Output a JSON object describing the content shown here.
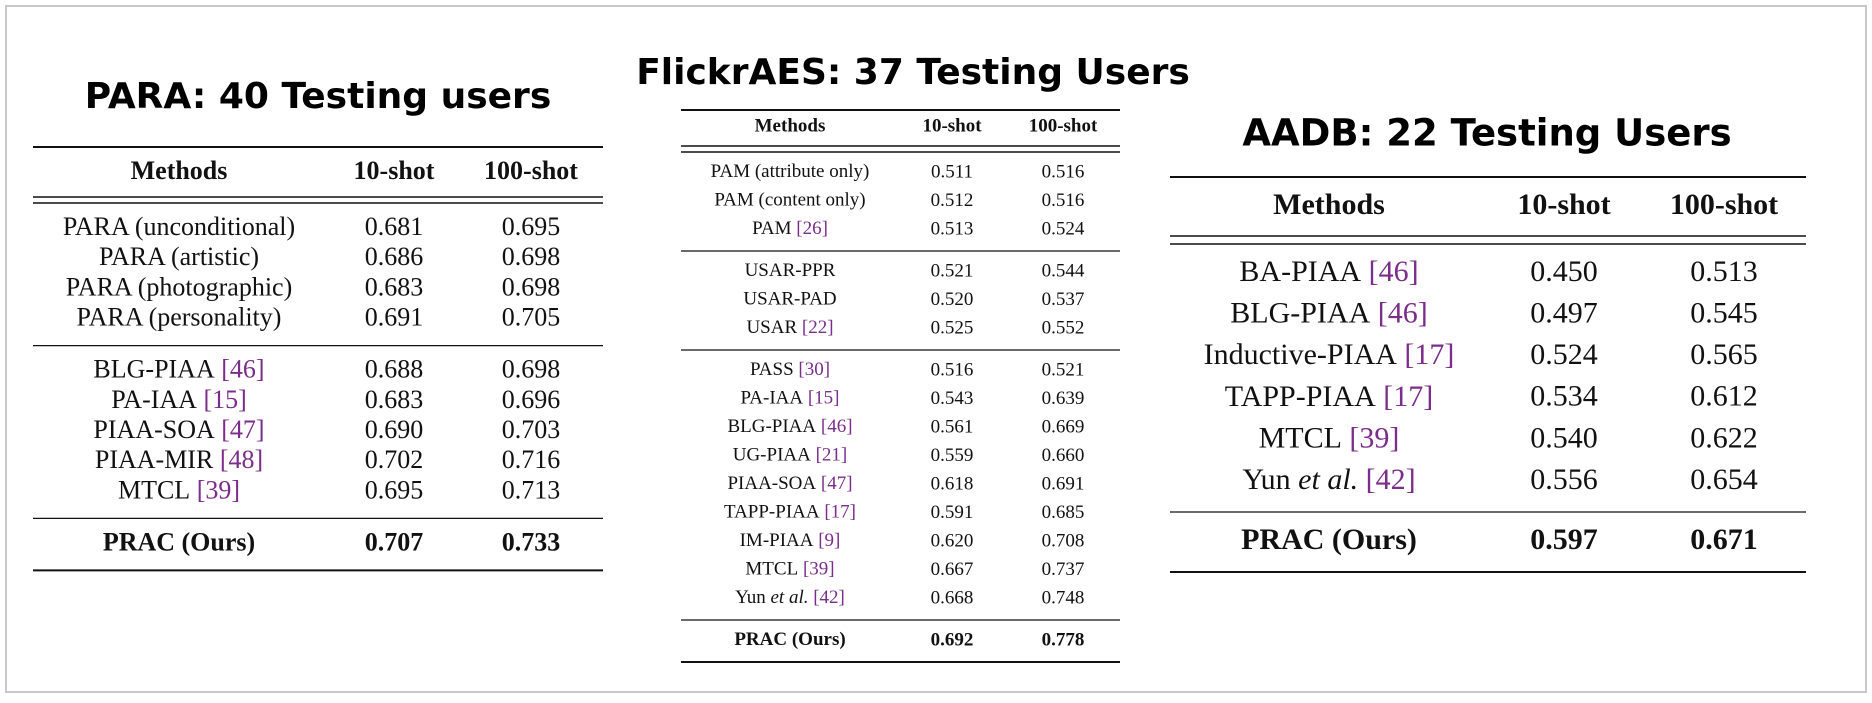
{
  "tables": [
    {
      "title": "PARA: 40 Testing users",
      "header": [
        "Methods",
        "10-shot",
        "100-shot"
      ],
      "groups": [
        {
          "rows": [
            {
              "method": {
                "name": "PARA (unconditional)"
              },
              "values": [
                "0.681",
                "0.695"
              ]
            },
            {
              "method": {
                "name": "PARA (artistic)"
              },
              "values": [
                "0.686",
                "0.698"
              ]
            },
            {
              "method": {
                "name": "PARA (photographic)"
              },
              "values": [
                "0.683",
                "0.698"
              ]
            },
            {
              "method": {
                "name": "PARA (personality)"
              },
              "values": [
                "0.691",
                "0.705"
              ]
            }
          ]
        },
        {
          "rows": [
            {
              "method": {
                "name": "BLG-PIAA",
                "ref": "[46]"
              },
              "values": [
                "0.688",
                "0.698"
              ]
            },
            {
              "method": {
                "name": "PA-IAA",
                "ref": "[15]"
              },
              "values": [
                "0.683",
                "0.696"
              ]
            },
            {
              "method": {
                "name": "PIAA-SOA",
                "ref": "[47]"
              },
              "values": [
                "0.690",
                "0.703"
              ]
            },
            {
              "method": {
                "name": "PIAA-MIR",
                "ref": "[48]"
              },
              "values": [
                "0.702",
                "0.716"
              ]
            },
            {
              "method": {
                "name": "MTCL",
                "ref": "[39]"
              },
              "values": [
                "0.695",
                "0.713"
              ]
            }
          ]
        },
        {
          "bold": true,
          "rows": [
            {
              "method": {
                "name": "PRAC (Ours)"
              },
              "values": [
                "0.707",
                "0.733"
              ]
            }
          ]
        }
      ]
    },
    {
      "title": "FlickrAES: 37 Testing Users",
      "header": [
        "Methods",
        "10-shot",
        "100-shot"
      ],
      "groups": [
        {
          "rows": [
            {
              "method": {
                "name": "PAM (attribute only)"
              },
              "values": [
                "0.511",
                "0.516"
              ]
            },
            {
              "method": {
                "name": "PAM (content only)"
              },
              "values": [
                "0.512",
                "0.516"
              ]
            },
            {
              "method": {
                "name": "PAM",
                "ref": "[26]"
              },
              "values": [
                "0.513",
                "0.524"
              ]
            }
          ]
        },
        {
          "rows": [
            {
              "method": {
                "name": "USAR-PPR"
              },
              "values": [
                "0.521",
                "0.544"
              ]
            },
            {
              "method": {
                "name": "USAR-PAD"
              },
              "values": [
                "0.520",
                "0.537"
              ]
            },
            {
              "method": {
                "name": "USAR",
                "ref": "[22]"
              },
              "values": [
                "0.525",
                "0.552"
              ]
            }
          ]
        },
        {
          "rows": [
            {
              "method": {
                "name": "PASS",
                "ref": "[30]"
              },
              "values": [
                "0.516",
                "0.521"
              ]
            },
            {
              "method": {
                "name": "PA-IAA",
                "ref": "[15]"
              },
              "values": [
                "0.543",
                "0.639"
              ]
            },
            {
              "method": {
                "name": "BLG-PIAA",
                "ref": "[46]"
              },
              "values": [
                "0.561",
                "0.669"
              ]
            },
            {
              "method": {
                "name": "UG-PIAA",
                "ref": "[21]"
              },
              "values": [
                "0.559",
                "0.660"
              ]
            },
            {
              "method": {
                "name": "PIAA-SOA",
                "ref": "[47]"
              },
              "values": [
                "0.618",
                "0.691"
              ]
            },
            {
              "method": {
                "name": "TAPP-PIAA",
                "ref": "[17]"
              },
              "values": [
                "0.591",
                "0.685"
              ]
            },
            {
              "method": {
                "name": "IM-PIAA",
                "ref": "[9]"
              },
              "values": [
                "0.620",
                "0.708"
              ]
            },
            {
              "method": {
                "name": "MTCL",
                "ref": "[39]"
              },
              "values": [
                "0.667",
                "0.737"
              ]
            },
            {
              "method": {
                "name": "Yun",
                "emph": "et al.",
                "ref": "[42]"
              },
              "values": [
                "0.668",
                "0.748"
              ]
            }
          ]
        },
        {
          "bold": true,
          "rows": [
            {
              "method": {
                "name": "PRAC (Ours)"
              },
              "values": [
                "0.692",
                "0.778"
              ]
            }
          ]
        }
      ]
    },
    {
      "title": "AADB: 22 Testing Users",
      "header": [
        "Methods",
        "10-shot",
        "100-shot"
      ],
      "groups": [
        {
          "rows": [
            {
              "method": {
                "name": "BA-PIAA",
                "ref": "[46]"
              },
              "values": [
                "0.450",
                "0.513"
              ]
            },
            {
              "method": {
                "name": "BLG-PIAA",
                "ref": "[46]"
              },
              "values": [
                "0.497",
                "0.545"
              ]
            },
            {
              "method": {
                "name": "Inductive-PIAA",
                "ref": "[17]"
              },
              "values": [
                "0.524",
                "0.565"
              ]
            },
            {
              "method": {
                "name": "TAPP-PIAA",
                "ref": "[17]"
              },
              "values": [
                "0.534",
                "0.612"
              ]
            },
            {
              "method": {
                "name": "MTCL",
                "ref": "[39]"
              },
              "values": [
                "0.540",
                "0.622"
              ]
            },
            {
              "method": {
                "name": "Yun",
                "emph": "et al.",
                "ref": "[42]"
              },
              "values": [
                "0.556",
                "0.654"
              ]
            }
          ]
        },
        {
          "bold": true,
          "rows": [
            {
              "method": {
                "name": "PRAC (Ours)"
              },
              "values": [
                "0.597",
                "0.671"
              ]
            }
          ]
        }
      ]
    }
  ]
}
